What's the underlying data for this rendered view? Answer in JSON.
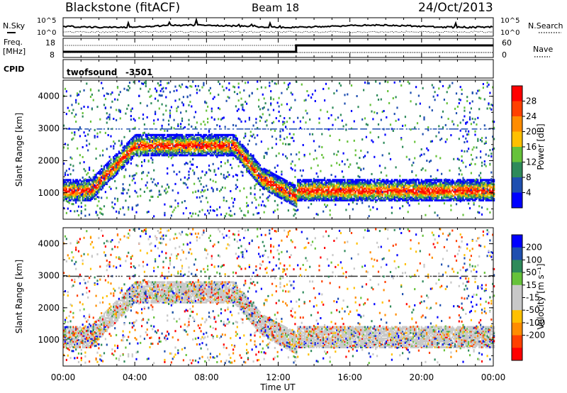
{
  "header": {
    "station": "Blackstone (fitACF)",
    "beam": "Beam 18",
    "date": "24/Oct/2013"
  },
  "noise_panel": {
    "left_label": "N.Sky",
    "right_label": "N.Search",
    "left_ticks": [
      "10^5",
      "10^0"
    ],
    "right_ticks": [
      "10^5",
      "10^0"
    ]
  },
  "freq_panel": {
    "left_label_1": "Freq.",
    "left_label_2": "[MHz]",
    "right_label": "Nave",
    "left_ticks": [
      "18",
      "8"
    ],
    "right_ticks": [
      "60",
      "0"
    ]
  },
  "cpid": {
    "label": "CPID",
    "name": "twofsound",
    "value": "-3501"
  },
  "colors": {
    "power_scale": [
      "#0000ff",
      "#1f4fb0",
      "#2e8a5a",
      "#66c23a",
      "#ffc000",
      "#ff8c00",
      "#ff4000",
      "#ff0000"
    ],
    "velocity_scale": [
      "#ff0000",
      "#ff4000",
      "#ff8c00",
      "#ffc000",
      "#c8c8c8",
      "#c8c8c8",
      "#66c23a",
      "#2e8a5a",
      "#1f4fb0",
      "#0000ff"
    ]
  },
  "chart_data": [
    {
      "type": "heatmap",
      "title": "Power",
      "xlabel": "",
      "ylabel": "Slant Range [km]",
      "colorbar_label": "Power [dB]",
      "colorbar_ticks": [
        "28",
        "24",
        "20",
        "16",
        "12",
        "8",
        "4"
      ],
      "x_ticks": [
        "00:00",
        "04:00",
        "08:00",
        "12:00",
        "16:00",
        "20:00",
        "00:00"
      ],
      "y_ticks": [
        "1000",
        "2000",
        "3000",
        "4000"
      ],
      "xlim_hours": [
        0,
        24
      ],
      "ylim_km": [
        180,
        4500
      ],
      "grid": false
    },
    {
      "type": "heatmap",
      "title": "Velocity",
      "xlabel": "Time UT",
      "ylabel": "Slant Range [km]",
      "colorbar_label": "Velocity [m s⁻¹]",
      "colorbar_ticks": [
        "200",
        "100",
        "50",
        "15",
        "-15",
        "-50",
        "-100",
        "-200"
      ],
      "x_ticks": [
        "00:00",
        "04:00",
        "08:00",
        "12:00",
        "16:00",
        "20:00",
        "00:00"
      ],
      "y_ticks": [
        "1000",
        "2000",
        "3000",
        "4000"
      ],
      "xlim_hours": [
        0,
        24
      ],
      "ylim_km": [
        180,
        4500
      ],
      "grid": false
    }
  ]
}
